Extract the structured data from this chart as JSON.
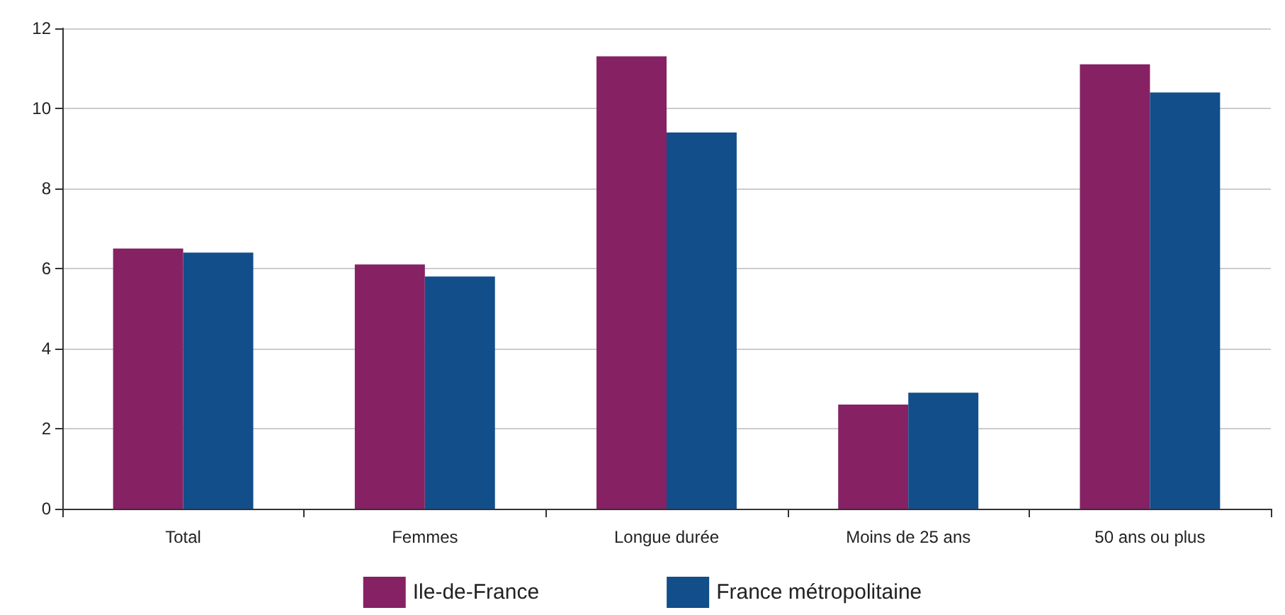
{
  "chart_data": {
    "type": "bar",
    "categories": [
      "Total",
      "Femmes",
      "Longue durée",
      "Moins de 25 ans",
      "50 ans ou plus"
    ],
    "series": [
      {
        "name": "Ile-de-France",
        "color": "#862164",
        "values": [
          6.5,
          6.1,
          11.3,
          2.6,
          11.1
        ]
      },
      {
        "name": "France métropolitaine",
        "color": "#124e8a",
        "values": [
          6.4,
          5.8,
          9.4,
          2.9,
          10.4
        ]
      }
    ],
    "ylim": [
      0,
      12
    ],
    "yticks": [
      0,
      2,
      4,
      6,
      8,
      10,
      12
    ],
    "grid": "y",
    "legend": "bottom"
  }
}
